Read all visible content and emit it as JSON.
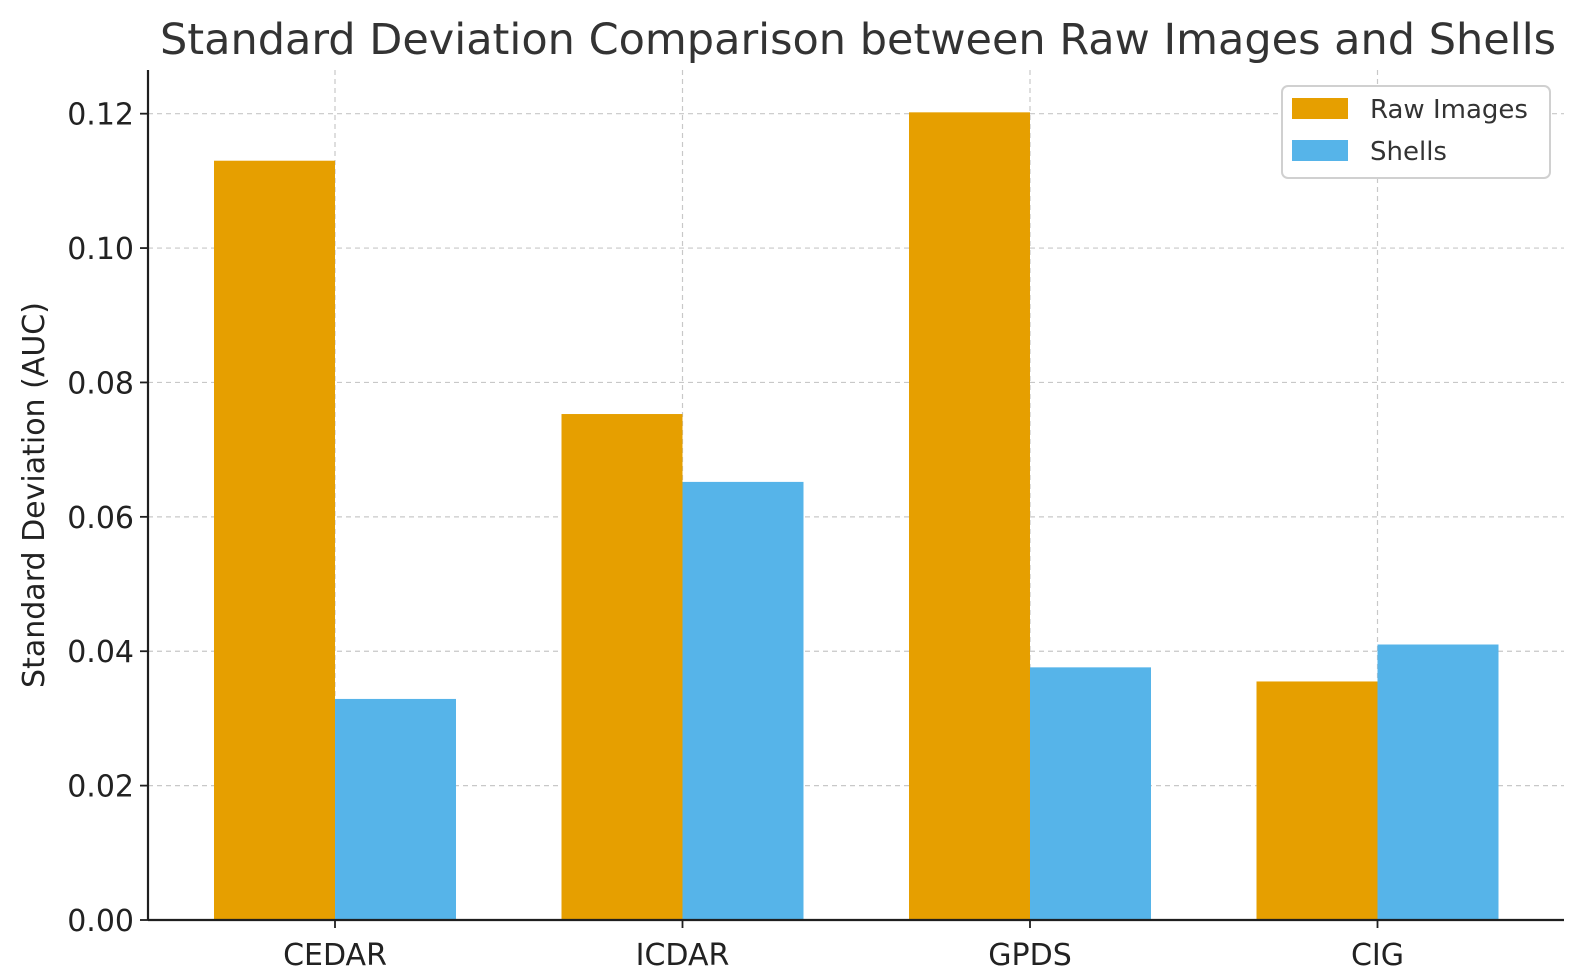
{
  "chart_data": {
    "type": "bar",
    "title": "Standard Deviation Comparison between Raw Images and Shells",
    "xlabel": "",
    "ylabel": "Standard Deviation (AUC)",
    "categories": [
      "CEDAR",
      "ICDAR",
      "GPDS",
      "CIG"
    ],
    "series": [
      {
        "name": "Raw Images",
        "color": "#E69F00",
        "values": [
          0.113,
          0.0753,
          0.1202,
          0.0355
        ]
      },
      {
        "name": "Shells",
        "color": "#56B4E9",
        "values": [
          0.0329,
          0.0652,
          0.0376,
          0.041
        ]
      }
    ],
    "ylim": [
      0,
      0.1265
    ],
    "yticks": [
      0.0,
      0.02,
      0.04,
      0.06,
      0.08,
      0.1,
      0.12
    ],
    "ytick_labels": [
      "0.00",
      "0.02",
      "0.04",
      "0.06",
      "0.08",
      "0.10",
      "0.12"
    ],
    "grid": true,
    "legend_position": "top-right"
  }
}
